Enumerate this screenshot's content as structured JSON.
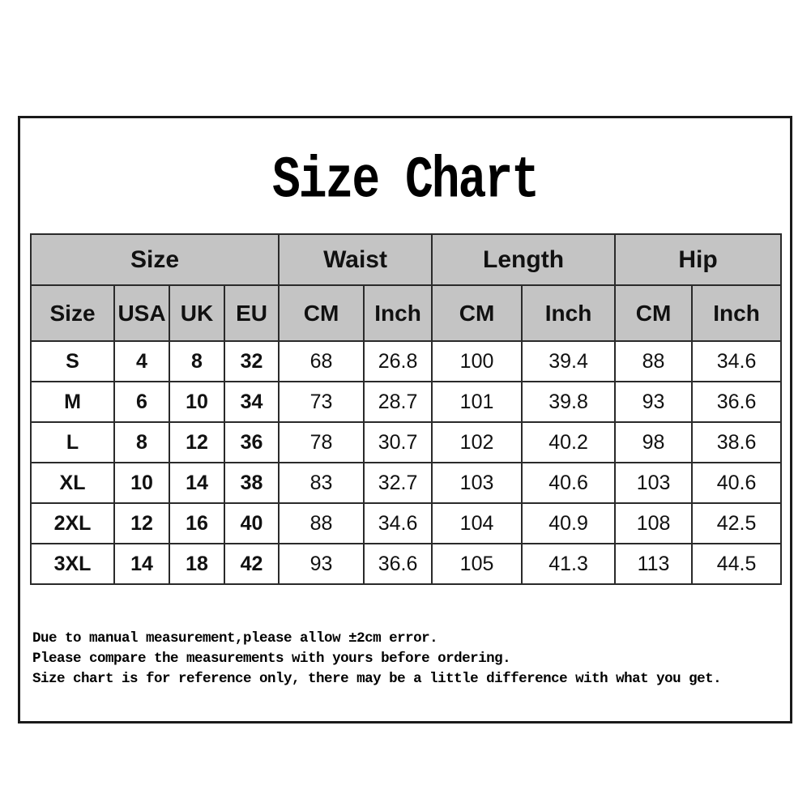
{
  "title": "Size Chart",
  "chart_data": {
    "type": "table",
    "title": "Size Chart",
    "column_groups": [
      {
        "label": "Size",
        "span": 4
      },
      {
        "label": "Waist",
        "span": 2
      },
      {
        "label": "Length",
        "span": 2
      },
      {
        "label": "Hip",
        "span": 2
      }
    ],
    "columns": [
      "Size",
      "USA",
      "UK",
      "EU",
      "CM",
      "Inch",
      "CM",
      "Inch",
      "CM",
      "Inch"
    ],
    "rows": [
      [
        "S",
        "4",
        "8",
        "32",
        "68",
        "26.8",
        "100",
        "39.4",
        "88",
        "34.6"
      ],
      [
        "M",
        "6",
        "10",
        "34",
        "73",
        "28.7",
        "101",
        "39.8",
        "93",
        "36.6"
      ],
      [
        "L",
        "8",
        "12",
        "36",
        "78",
        "30.7",
        "102",
        "40.2",
        "98",
        "38.6"
      ],
      [
        "XL",
        "10",
        "14",
        "38",
        "83",
        "32.7",
        "103",
        "40.6",
        "103",
        "40.6"
      ],
      [
        "2XL",
        "12",
        "16",
        "40",
        "88",
        "34.6",
        "104",
        "40.9",
        "108",
        "42.5"
      ],
      [
        "3XL",
        "14",
        "18",
        "42",
        "93",
        "36.6",
        "105",
        "41.3",
        "113",
        "44.5"
      ]
    ]
  },
  "notes": [
    "Due to manual measurement,please allow ±2cm error.",
    "Please compare the measurements with yours before ordering.",
    "Size chart is for reference only, there may be a little difference with what you get."
  ],
  "colors": {
    "header_bg": "#c4c4c4",
    "table_border": "#2a2a2a",
    "frame_border": "#1a1a1a",
    "text": "#111111",
    "background": "#ffffff"
  }
}
